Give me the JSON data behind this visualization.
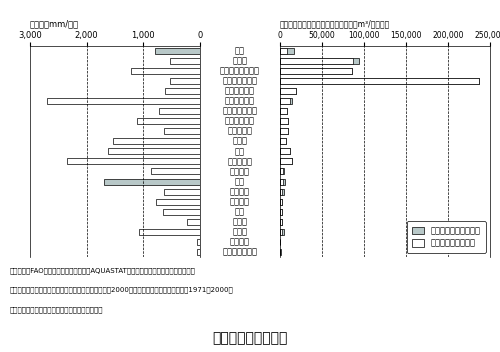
{
  "countries": [
    "世界",
    "カナダ",
    "ニュージーランド",
    "オーストラリア",
    "スウェーデン",
    "インドネシア",
    "アメリカ合衆国",
    "オーストリア",
    "ルーマニア",
    "スイス",
    "タイ",
    "フィリピン",
    "フランス",
    "日本",
    "スペイン",
    "イギリス",
    "中国",
    "イラン",
    "インド",
    "エジプト",
    "サウジアラビア"
  ],
  "rainfall_mm": [
    800,
    537,
    1220,
    534,
    617,
    2702,
    715,
    1110,
    637,
    1537,
    1622,
    2348,
    867,
    1690,
    636,
    777,
    645,
    228,
    1083,
    51,
    59
  ],
  "per_capita_rainfall": [
    16800,
    94000,
    86000,
    237000,
    19500,
    13700,
    8500,
    9000,
    9200,
    7500,
    12400,
    14400,
    5000,
    5400,
    4200,
    2600,
    2100,
    2400,
    4400,
    400,
    800
  ],
  "per_capita_water": [
    8200,
    87000,
    86000,
    237000,
    19500,
    12200,
    8500,
    9000,
    9200,
    7500,
    12400,
    14400,
    3400,
    3300,
    2800,
    2600,
    2100,
    2400,
    1800,
    60,
    120
  ],
  "highlight_countries": [
    "世界",
    "日本"
  ],
  "gray_color": "#b8c8c8",
  "white_color": "#ffffff",
  "title": "世界各国の降水量等",
  "left_title": "降水量（mm/年）",
  "right_title": "一人当たり年間降水総量・水資源量（m³/人・年）",
  "left_xticks": [
    3000,
    2000,
    1000,
    0
  ],
  "left_xticklabels": [
    "3,000",
    "2,000",
    "1,000",
    "0"
  ],
  "right_xticks": [
    0,
    50000,
    100000,
    150000,
    200000,
    250000
  ],
  "right_xticklabels": [
    "0",
    "50,000",
    "100,000",
    "150,000",
    "200,000",
    "250,000"
  ],
  "legend_label1": "１人当たり年降水総量",
  "legend_label2": "１人当たり水資源量",
  "note_line1": "（注）１．FAO（国連食糖農業機関）『AQUASTAT』をもとに国土交通省水資源部作成",
  "note_line2": "　　　２．日本の人口は総務省統計局『国勢調査』（2000年）．平均降水量と水資源量は1971～2000年",
  "note_line3": "　　　　　の平均値で，国土交通省水資源部調べ"
}
